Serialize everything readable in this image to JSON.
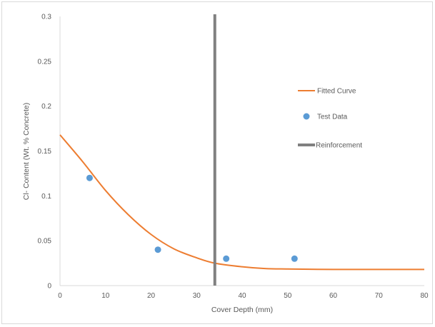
{
  "chart_data": {
    "type": "scatter",
    "xlabel": "Cover Depth (mm)",
    "ylabel": "Cl- Content (Wt. % Concrete)",
    "xlim": [
      0,
      80
    ],
    "ylim": [
      0,
      0.3
    ],
    "x_ticks": [
      "0",
      "10",
      "20",
      "30",
      "40",
      "50",
      "60",
      "70",
      "80"
    ],
    "y_ticks": [
      "0",
      "0.05",
      "0.1",
      "0.15",
      "0.2",
      "0.25",
      "0.3"
    ],
    "grid": false,
    "legend_position": "right",
    "series": [
      {
        "name": "Fitted Curve",
        "kind": "line",
        "color": "#ED7D31",
        "points": [
          [
            0,
            0.168
          ],
          [
            5,
            0.138
          ],
          [
            10,
            0.106
          ],
          [
            15,
            0.079
          ],
          [
            20,
            0.057
          ],
          [
            25,
            0.041
          ],
          [
            30,
            0.031
          ],
          [
            34,
            0.025
          ],
          [
            40,
            0.021
          ],
          [
            45,
            0.019
          ],
          [
            50,
            0.0185
          ],
          [
            55,
            0.0182
          ],
          [
            60,
            0.018
          ],
          [
            70,
            0.018
          ],
          [
            80,
            0.018
          ]
        ]
      },
      {
        "name": "Test Data",
        "kind": "scatter",
        "color": "#5B9BD5",
        "points": [
          [
            6.5,
            0.12
          ],
          [
            21.5,
            0.04
          ],
          [
            36.5,
            0.03
          ],
          [
            51.5,
            0.03
          ]
        ]
      },
      {
        "name": "Reinforcement",
        "kind": "vertical-line",
        "color": "#808080",
        "x": 34
      }
    ]
  }
}
